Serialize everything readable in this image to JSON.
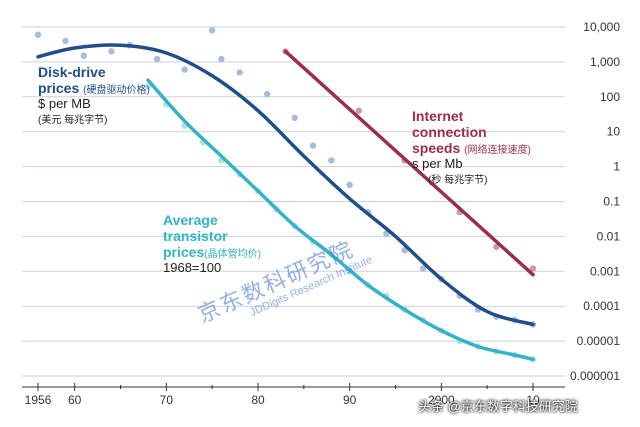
{
  "chart_data": {
    "type": "line",
    "y_scale": "log",
    "ylim": [
      1e-06,
      10000
    ],
    "xlim": [
      1952,
      2013
    ],
    "x_ticks": [
      {
        "value": 1956,
        "label": "1956"
      },
      {
        "value": 1960,
        "label": "60"
      },
      {
        "value": 1970,
        "label": "70"
      },
      {
        "value": 1980,
        "label": "80"
      },
      {
        "value": 1990,
        "label": "90"
      },
      {
        "value": 2000,
        "label": "2000"
      },
      {
        "value": 2010,
        "label": "10"
      }
    ],
    "y_ticks": [
      {
        "value": 10000,
        "label": "10,000"
      },
      {
        "value": 1000,
        "label": "1,000"
      },
      {
        "value": 100,
        "label": "100"
      },
      {
        "value": 10,
        "label": "10"
      },
      {
        "value": 1,
        "label": "1"
      },
      {
        "value": 0.1,
        "label": "0.1"
      },
      {
        "value": 0.01,
        "label": "0.01"
      },
      {
        "value": 0.001,
        "label": "0.001"
      },
      {
        "value": 0.0001,
        "label": "0.0001"
      },
      {
        "value": 1e-05,
        "label": "0.00001"
      },
      {
        "value": 1e-06,
        "label": "0.000001"
      }
    ],
    "grid": "horizontal",
    "series": [
      {
        "key": "disk",
        "name": "Disk-drive prices",
        "name_cn": "(硬盘驱动价格)",
        "unit": "$ per MB",
        "unit_sub": "(美元 每兆字节)",
        "color": "#1f4e8c",
        "x": [
          1956,
          1960,
          1965,
          1970,
          1975,
          1980,
          1985,
          1990,
          1995,
          2000,
          2005,
          2010
        ],
        "y": [
          1400,
          2500,
          3000,
          1800,
          400,
          40,
          2,
          0.12,
          0.01,
          0.0006,
          7e-05,
          3e-05
        ],
        "scatter_x": [
          1956,
          1959,
          1961,
          1964,
          1966,
          1969,
          1972,
          1975,
          1976,
          1978,
          1981,
          1984,
          1986,
          1988,
          1990,
          1992,
          1994,
          1996,
          1998,
          2000,
          2002,
          2004,
          2006,
          2008,
          2010
        ],
        "scatter_y": [
          6000,
          4000,
          1500,
          2000,
          3000,
          1200,
          600,
          8000,
          1200,
          500,
          120,
          25,
          4,
          1.5,
          0.3,
          0.05,
          0.012,
          0.004,
          0.0012,
          0.0006,
          0.0002,
          8e-05,
          5e-05,
          4e-05,
          3e-05
        ]
      },
      {
        "key": "transistor",
        "name": "Average transistor prices",
        "name_cn": "(晶体管均价)",
        "unit": "1968=100",
        "color": "#35b3c6",
        "x": [
          1968,
          1972,
          1976,
          1980,
          1984,
          1988,
          1992,
          1996,
          2000,
          2004,
          2008,
          2010
        ],
        "y": [
          300,
          20,
          2,
          0.2,
          0.02,
          0.003,
          0.0004,
          8e-05,
          2e-05,
          7e-06,
          4e-06,
          3e-06
        ],
        "scatter_x": [
          1968,
          1970,
          1972,
          1974,
          1976,
          1978,
          1980,
          1982,
          1984,
          1986,
          1988,
          1990,
          1992,
          1994,
          1996,
          1998,
          2000,
          2002,
          2004,
          2006,
          2008,
          2010
        ],
        "scatter_y": [
          200,
          60,
          15,
          5,
          1.5,
          0.6,
          0.2,
          0.06,
          0.02,
          0.007,
          0.003,
          0.001,
          0.0004,
          0.0002,
          8e-05,
          4e-05,
          2e-05,
          1e-05,
          7e-06,
          5e-06,
          4e-06,
          3e-06
        ]
      },
      {
        "key": "internet",
        "name": "Internet connection speeds",
        "name_cn": "(网络连接速度)",
        "unit": "s per Mb",
        "unit_sub": "(秒 每兆字节)",
        "color": "#9b2f45",
        "x": [
          1983,
          2010
        ],
        "y": [
          2000,
          0.0008
        ],
        "scatter_x": [
          1983,
          1991,
          1996,
          2002,
          2006,
          2010
        ],
        "scatter_y": [
          2000,
          40,
          1.5,
          0.05,
          0.005,
          0.0012
        ]
      }
    ]
  },
  "labels": {
    "disk_title_1": "Disk-drive",
    "disk_title_2": "prices",
    "disk_cn": "(硬盘驱动价格)",
    "disk_unit": "$ per MB",
    "disk_sub": "(美元 每兆字节)",
    "trans_title_1": "Average",
    "trans_title_2": "transistor",
    "trans_title_3": "prices",
    "trans_cn": "(晶体管均价)",
    "trans_unit": "1968=100",
    "inet_title_1": "Internet",
    "inet_title_2": "connection",
    "inet_title_3": "speeds",
    "inet_cn": "(网络连接速度)",
    "inet_unit": "s per Mb",
    "inet_sub": "(秒 每兆字节)"
  },
  "watermarks": {
    "logo_text": "京东数科研究院",
    "logo_sub": "JDDigits Research Institute",
    "badge": "头条 @京东数字科技研究院"
  }
}
